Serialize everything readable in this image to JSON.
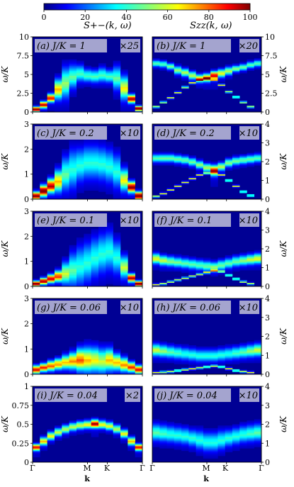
{
  "colorbar": {
    "ticks": [
      "0",
      "20",
      "40",
      "60",
      "80",
      "100"
    ],
    "range": [
      0,
      100
    ]
  },
  "column_titles": [
    "S+−(k, ω)",
    "Szz(k, ω)"
  ],
  "axis_labels": {
    "y": "ω/K",
    "x": "k"
  },
  "x_ticks": [
    "Γ",
    "M",
    "K",
    "Γ"
  ],
  "chart_data": [
    {
      "id": "a",
      "type": "heatmap",
      "label": "(a) J/K = 1",
      "mult": "×25",
      "side": "left",
      "ylim": [
        0,
        10
      ],
      "yticks": [
        "0",
        "2.5",
        "5",
        "7.5",
        "10"
      ],
      "band": [
        0.4,
        1.0,
        1.9,
        3.1,
        4.0,
        4.8,
        5.2,
        4.9,
        4.8,
        5.0,
        4.8,
        4.6,
        3.3,
        1.8,
        0.5
      ],
      "peak": [
        95,
        85,
        80,
        60,
        45,
        40,
        38,
        38,
        38,
        38,
        38,
        40,
        55,
        85,
        95
      ],
      "width": [
        0.3,
        0.4,
        0.5,
        1.2,
        1.8,
        1.4,
        1.0,
        0.8,
        0.8,
        0.9,
        0.8,
        1.4,
        1.4,
        0.5,
        0.3
      ]
    },
    {
      "id": "b",
      "type": "heatmap",
      "label": "(b) J/K = 1",
      "mult": "×20",
      "side": "right",
      "ylim": [
        0,
        10
      ],
      "yticks": [
        "0",
        "2.5",
        "5",
        "7.5",
        "10"
      ],
      "band": [
        6.5,
        6.4,
        6.1,
        5.6,
        5.3,
        4.9,
        4.5,
        4.6,
        4.9,
        5.2,
        5.5,
        5.8,
        6.0,
        6.3,
        6.5
      ],
      "peak": [
        40,
        40,
        42,
        45,
        48,
        50,
        60,
        70,
        85,
        55,
        48,
        45,
        42,
        40,
        40
      ],
      "width": [
        0.4,
        0.4,
        0.4,
        0.5,
        0.5,
        0.5,
        0.5,
        0.5,
        0.5,
        0.5,
        0.5,
        0.4,
        0.4,
        0.4,
        0.4
      ],
      "lower": [
        0.7,
        1.3,
        1.9,
        2.6,
        3.3,
        3.9,
        4.3,
        4.5,
        4.3,
        3.6,
        2.7,
        2.0,
        1.3,
        0.7,
        0.0
      ]
    },
    {
      "id": "c",
      "type": "heatmap",
      "label": "(c) J/K = 0.2",
      "mult": "×10",
      "side": "left",
      "ylim": [
        0,
        3
      ],
      "yticks": [
        "0",
        "1",
        "2",
        "3"
      ],
      "band": [
        0.15,
        0.35,
        0.55,
        0.75,
        1.05,
        1.25,
        1.4,
        1.5,
        1.5,
        1.45,
        1.35,
        1.15,
        0.8,
        0.5,
        0.15
      ],
      "peak": [
        90,
        95,
        85,
        60,
        40,
        35,
        35,
        35,
        35,
        35,
        35,
        35,
        55,
        90,
        95
      ],
      "width": [
        0.15,
        0.2,
        0.25,
        0.4,
        0.6,
        0.7,
        0.6,
        0.6,
        0.6,
        0.6,
        0.6,
        0.6,
        0.4,
        0.2,
        0.15
      ]
    },
    {
      "id": "d",
      "type": "heatmap",
      "label": "(d) J/K = 0.2",
      "mult": "×10",
      "side": "right",
      "ylim": [
        0,
        4
      ],
      "yticks": [
        "0",
        "1",
        "2",
        "3",
        "4"
      ],
      "band": [
        2.2,
        2.2,
        2.2,
        2.15,
        2.1,
        2.0,
        1.85,
        1.7,
        1.55,
        1.75,
        1.95,
        2.05,
        2.1,
        2.15,
        2.2
      ],
      "peak": [
        40,
        42,
        42,
        42,
        42,
        42,
        45,
        50,
        80,
        50,
        45,
        42,
        42,
        42,
        40
      ],
      "width": [
        0.2,
        0.2,
        0.2,
        0.2,
        0.2,
        0.2,
        0.2,
        0.2,
        0.25,
        0.2,
        0.2,
        0.2,
        0.2,
        0.2,
        0.2
      ],
      "lower": [
        0.15,
        0.3,
        0.5,
        0.7,
        0.9,
        1.1,
        1.3,
        1.4,
        1.5,
        1.3,
        1.0,
        0.7,
        0.4,
        0.2,
        0.0
      ]
    },
    {
      "id": "e",
      "type": "heatmap",
      "label": "(e) J/K = 0.1",
      "mult": "×10",
      "side": "left",
      "ylim": [
        0,
        3
      ],
      "yticks": [
        "0",
        "1",
        "2",
        "3"
      ],
      "band": [
        0.12,
        0.22,
        0.32,
        0.42,
        0.55,
        0.7,
        0.85,
        1.0,
        1.2,
        1.35,
        1.45,
        1.2,
        0.8,
        0.35,
        0.12
      ],
      "peak": [
        95,
        90,
        85,
        75,
        50,
        40,
        35,
        35,
        35,
        35,
        35,
        35,
        50,
        85,
        95
      ],
      "width": [
        0.1,
        0.12,
        0.15,
        0.2,
        0.4,
        0.6,
        0.7,
        0.7,
        0.7,
        0.7,
        0.7,
        0.6,
        0.4,
        0.15,
        0.1
      ]
    },
    {
      "id": "f",
      "type": "heatmap",
      "label": "(f) J/K = 0.1",
      "mult": "×10",
      "side": "right",
      "ylim": [
        0,
        4
      ],
      "yticks": [
        "0",
        "1",
        "2",
        "3",
        "4"
      ],
      "band": [
        1.5,
        1.4,
        1.35,
        1.3,
        1.25,
        1.2,
        1.15,
        1.1,
        1.05,
        1.15,
        1.25,
        1.35,
        1.4,
        1.45,
        1.5
      ],
      "peak": [
        55,
        50,
        45,
        42,
        40,
        40,
        40,
        42,
        45,
        42,
        40,
        42,
        45,
        50,
        55
      ],
      "width": [
        0.25,
        0.25,
        0.25,
        0.25,
        0.25,
        0.25,
        0.25,
        0.25,
        0.25,
        0.25,
        0.25,
        0.25,
        0.25,
        0.25,
        0.25
      ],
      "lower": [
        0.1,
        0.15,
        0.25,
        0.35,
        0.45,
        0.55,
        0.65,
        0.75,
        0.85,
        0.8,
        0.6,
        0.4,
        0.25,
        0.15,
        0.0
      ]
    },
    {
      "id": "g",
      "type": "heatmap",
      "label": "(g) J/K = 0.06",
      "mult": "×10",
      "side": "left",
      "ylim": [
        0,
        3
      ],
      "yticks": [
        "0",
        "1",
        "2",
        "3"
      ],
      "band": [
        0.2,
        0.28,
        0.35,
        0.42,
        0.5,
        0.55,
        0.6,
        0.6,
        0.6,
        0.55,
        0.6,
        0.5,
        0.4,
        0.3,
        0.2
      ],
      "peak": [
        80,
        75,
        70,
        65,
        60,
        65,
        70,
        60,
        55,
        50,
        60,
        60,
        65,
        75,
        80
      ],
      "width": [
        0.15,
        0.15,
        0.18,
        0.2,
        0.25,
        0.3,
        0.4,
        0.45,
        0.45,
        0.45,
        0.4,
        0.3,
        0.25,
        0.18,
        0.15
      ]
    },
    {
      "id": "h",
      "type": "heatmap",
      "label": "(h) J/K = 0.06",
      "mult": "×10",
      "side": "right",
      "ylim": [
        0,
        4
      ],
      "yticks": [
        "0",
        "1",
        "2",
        "3",
        "4"
      ],
      "band": [
        1.3,
        1.25,
        1.2,
        1.15,
        1.1,
        1.05,
        1.0,
        1.0,
        1.0,
        1.05,
        1.1,
        1.15,
        1.2,
        1.25,
        1.3
      ],
      "peak": [
        50,
        45,
        40,
        38,
        35,
        35,
        35,
        35,
        35,
        35,
        35,
        38,
        40,
        45,
        50
      ],
      "width": [
        0.3,
        0.3,
        0.3,
        0.3,
        0.3,
        0.3,
        0.3,
        0.3,
        0.3,
        0.3,
        0.3,
        0.3,
        0.3,
        0.3,
        0.3
      ],
      "lower": [
        0.1,
        0.12,
        0.15,
        0.2,
        0.25,
        0.3,
        0.35,
        0.4,
        0.45,
        0.4,
        0.3,
        0.2,
        0.15,
        0.1,
        0.0
      ]
    },
    {
      "id": "i",
      "type": "heatmap",
      "label": "(i) J/K = 0.04",
      "mult": "×2",
      "side": "left",
      "ylim": [
        0,
        1
      ],
      "yticks": [
        "0",
        "0.25",
        "0.5",
        "0.75",
        "1"
      ],
      "band": [
        0.2,
        0.28,
        0.35,
        0.4,
        0.44,
        0.47,
        0.49,
        0.5,
        0.51,
        0.5,
        0.48,
        0.44,
        0.38,
        0.28,
        0.2
      ],
      "peak": [
        80,
        60,
        55,
        50,
        50,
        50,
        52,
        55,
        85,
        55,
        52,
        50,
        55,
        60,
        80
      ],
      "width": [
        0.04,
        0.05,
        0.05,
        0.05,
        0.05,
        0.05,
        0.05,
        0.05,
        0.05,
        0.05,
        0.05,
        0.05,
        0.05,
        0.05,
        0.04
      ]
    },
    {
      "id": "j",
      "type": "heatmap",
      "label": "(j) J/K = 0.04",
      "mult": "×10",
      "side": "right",
      "ylim": [
        0,
        4
      ],
      "yticks": [
        "0",
        "1",
        "2",
        "3",
        "4"
      ],
      "band": [
        1.6,
        1.55,
        1.5,
        1.45,
        1.4,
        1.3,
        1.2,
        1.1,
        1.1,
        1.2,
        1.3,
        1.4,
        1.5,
        1.55,
        1.6
      ],
      "peak": [
        40,
        38,
        36,
        35,
        35,
        35,
        35,
        35,
        35,
        35,
        35,
        35,
        36,
        38,
        40
      ],
      "width": [
        0.4,
        0.4,
        0.4,
        0.4,
        0.4,
        0.4,
        0.45,
        0.45,
        0.45,
        0.45,
        0.4,
        0.4,
        0.4,
        0.4,
        0.4
      ]
    }
  ]
}
